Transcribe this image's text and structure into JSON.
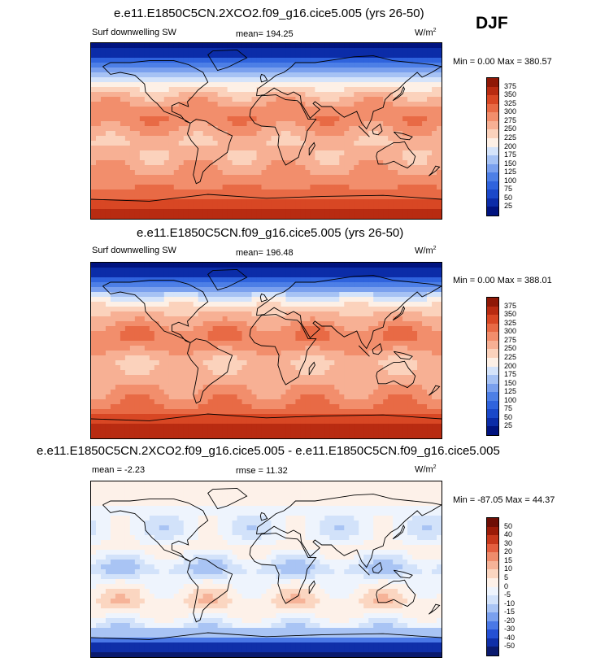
{
  "season": "DJF",
  "panels": [
    {
      "title": "e.e11.E1850C5CN.2XCO2.f09_g16.cice5.005 (yrs 26-50)",
      "left_label": "Surf downwelling SW",
      "center_label": "mean= 194.25",
      "units": "W/m",
      "units_sup": "2",
      "minmax": "Min =   0.00 Max = 380.57"
    },
    {
      "title": "e.e11.E1850C5CN.f09_g16.cice5.005 (yrs 26-50)",
      "left_label": "Surf downwelling SW",
      "center_label": "mean= 196.48",
      "units": "W/m",
      "units_sup": "2",
      "minmax": "Min =   0.00 Max = 388.01"
    },
    {
      "title": "e.e11.E1850C5CN.2XCO2.f09_g16.cice5.005 - e.e11.E1850C5CN.f09_g16.cice5.005",
      "left_label": "mean =  -2.23",
      "center_label": "rmse =  11.32",
      "units": "W/m",
      "units_sup": "2",
      "minmax": "Min = -87.05 Max =  44.37"
    }
  ],
  "chart_data": [
    {
      "type": "heatmap",
      "title": "e.e11.E1850C5CN.2XCO2.f09_g16.cice5.005 (yrs 26-50)",
      "variable": "Surf downwelling SW",
      "units": "W/m2",
      "mean": 194.25,
      "min": 0.0,
      "max": 380.57,
      "colorbar_levels": [
        25,
        50,
        75,
        100,
        125,
        150,
        175,
        200,
        225,
        250,
        275,
        300,
        325,
        350,
        375
      ],
      "colors": [
        "#00137f",
        "#0b2ca8",
        "#1a48c9",
        "#2f63dd",
        "#4d7fe6",
        "#7aa0ee",
        "#a6c2f4",
        "#d4e3fa",
        "#fdf0e6",
        "#fbd2bc",
        "#f7b094",
        "#f28e6c",
        "#e86a45",
        "#d84724",
        "#b82b11",
        "#8f1806"
      ],
      "lat_profile": [
        0,
        40,
        110,
        175,
        225,
        260,
        285,
        295,
        270,
        250,
        255,
        265,
        280,
        295,
        320,
        350,
        375
      ]
    },
    {
      "type": "heatmap",
      "title": "e.e11.E1850C5CN.f09_g16.cice5.005 (yrs 26-50)",
      "variable": "Surf downwelling SW",
      "units": "W/m2",
      "mean": 196.48,
      "min": 0.0,
      "max": 388.01,
      "colorbar_levels": [
        25,
        50,
        75,
        100,
        125,
        150,
        175,
        200,
        225,
        250,
        275,
        300,
        325,
        350,
        375
      ],
      "colors": [
        "#00137f",
        "#0b2ca8",
        "#1a48c9",
        "#2f63dd",
        "#4d7fe6",
        "#7aa0ee",
        "#a6c2f4",
        "#d4e3fa",
        "#fdf0e6",
        "#fbd2bc",
        "#f7b094",
        "#f28e6c",
        "#e86a45",
        "#d84724",
        "#b82b11",
        "#8f1806"
      ],
      "lat_profile": [
        0,
        40,
        112,
        178,
        228,
        262,
        288,
        298,
        272,
        252,
        258,
        268,
        285,
        300,
        325,
        355,
        380
      ]
    },
    {
      "type": "heatmap",
      "title": "e.e11.E1850C5CN.2XCO2.f09_g16.cice5.005 - e.e11.E1850C5CN.f09_g16.cice5.005",
      "units": "W/m2",
      "mean": -2.23,
      "rmse": 11.32,
      "min": -87.05,
      "max": 44.37,
      "colorbar_levels": [
        -50,
        -40,
        -30,
        -20,
        -15,
        -10,
        -5,
        0,
        5,
        10,
        15,
        20,
        30,
        40,
        50
      ],
      "colors": [
        "#0a1a6e",
        "#0f2fa8",
        "#2450d4",
        "#4a78e6",
        "#7aa0ee",
        "#a9c4f4",
        "#d2e2fa",
        "#eef4fd",
        "#fdf1e9",
        "#fbd6c1",
        "#f6b398",
        "#ef8c6c",
        "#e45f40",
        "#c7381c",
        "#9b1b08",
        "#6e0e05"
      ],
      "lat_profile": [
        0,
        0,
        0,
        -2,
        -5,
        -3,
        2,
        -4,
        -10,
        -2,
        3,
        6,
        2,
        -5,
        -15,
        -45,
        -60
      ]
    }
  ]
}
